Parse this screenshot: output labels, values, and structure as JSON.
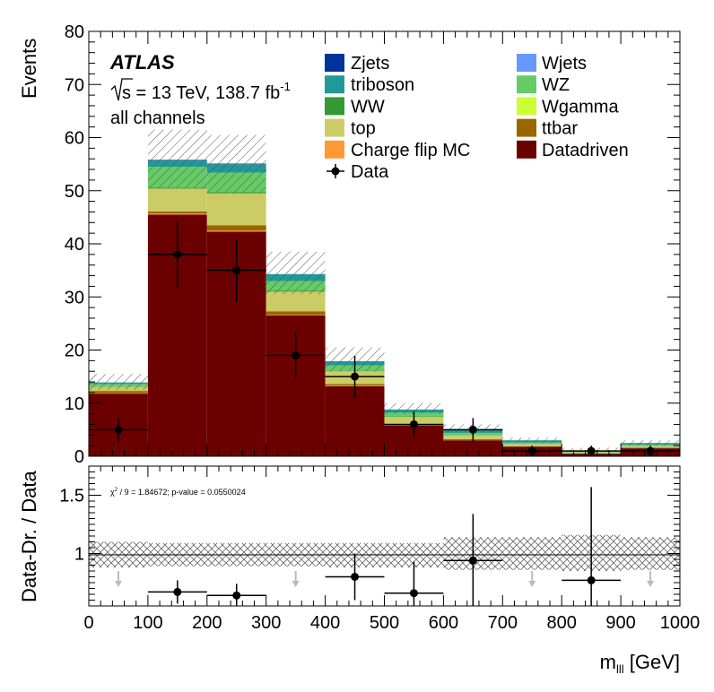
{
  "header": {
    "atlas": "ATLAS",
    "sqrt_s": "s",
    "energy_text": " = 13 TeV, 138.7 fb",
    "lumi_exp": "-1",
    "channels": "all channels"
  },
  "chart_data": [
    {
      "type": "stacked-histogram",
      "ylabel": "Events",
      "xlim": [
        0,
        1000
      ],
      "ylim": [
        0,
        80
      ],
      "yticks": [
        0,
        10,
        20,
        30,
        40,
        50,
        60,
        70,
        80
      ],
      "bin_edges": [
        0,
        100,
        200,
        300,
        400,
        500,
        600,
        700,
        800,
        900,
        1000
      ],
      "series": [
        {
          "name": "Datadriven",
          "color": "#6b0000",
          "values": [
            11.8,
            45.5,
            42.3,
            26.5,
            13.2,
            5.8,
            3.0,
            1.8,
            0.5,
            1.5
          ]
        },
        {
          "name": "Charge flip MC",
          "color": "#ff9933",
          "values": [
            0.1,
            0.2,
            0.2,
            0.1,
            0.1,
            0.1,
            0.0,
            0.0,
            0.0,
            0.0
          ]
        },
        {
          "name": "ttbar",
          "color": "#996600",
          "values": [
            0.4,
            0.4,
            1.0,
            0.7,
            0.3,
            0.2,
            0.2,
            0.1,
            0.0,
            0.1
          ]
        },
        {
          "name": "top",
          "color": "#cccc66",
          "values": [
            0.8,
            4.3,
            6.0,
            3.7,
            2.4,
            1.3,
            0.7,
            0.4,
            0.2,
            0.3
          ]
        },
        {
          "name": "Wgamma",
          "color": "#ccff33",
          "values": [
            0.0,
            0.0,
            0.0,
            0.0,
            0.0,
            0.0,
            0.0,
            0.0,
            0.0,
            0.0
          ]
        },
        {
          "name": "WW",
          "color": "#339933",
          "values": [
            0.1,
            0.2,
            0.2,
            0.2,
            0.1,
            0.1,
            0.0,
            0.0,
            0.0,
            0.0
          ]
        },
        {
          "name": "WZ",
          "color": "#66cc66",
          "values": [
            0.4,
            3.9,
            3.7,
            1.8,
            1.0,
            0.7,
            0.5,
            0.3,
            0.2,
            0.3
          ]
        },
        {
          "name": "triboson",
          "color": "#229999",
          "values": [
            0.3,
            1.2,
            1.6,
            1.3,
            0.8,
            0.6,
            0.5,
            0.4,
            0.2,
            0.3
          ]
        },
        {
          "name": "Wjets",
          "color": "#6699ff",
          "values": [
            0.0,
            0.0,
            0.0,
            0.0,
            0.0,
            0.0,
            0.0,
            0.0,
            0.0,
            0.0
          ]
        },
        {
          "name": "Zjets",
          "color": "#003399",
          "values": [
            0.0,
            0.1,
            0.1,
            0.0,
            0.0,
            0.0,
            0.0,
            0.0,
            0.0,
            0.0
          ]
        }
      ],
      "uncertainty_band": {
        "lower": [
          12.5,
          50.5,
          49.5,
          30.5,
          16.0,
          8.0,
          4.5,
          2.5,
          1.0,
          2.0
        ],
        "upper": [
          15.5,
          61.5,
          60.5,
          38.5,
          20.5,
          10.0,
          6.0,
          3.5,
          1.6,
          3.0
        ]
      },
      "data": {
        "name": "Data",
        "x": [
          50,
          150,
          250,
          350,
          450,
          550,
          650,
          750,
          850,
          950
        ],
        "y": [
          5,
          38,
          35,
          19,
          15,
          6,
          5,
          1,
          1,
          1
        ],
        "err_low": [
          2.2,
          6.2,
          5.9,
          4.4,
          3.9,
          2.4,
          2.2,
          1.0,
          1.0,
          1.0
        ],
        "err_high": [
          2.2,
          6.2,
          5.9,
          4.4,
          3.9,
          2.4,
          2.2,
          1.0,
          1.0,
          1.0
        ]
      },
      "legend": {
        "left": [
          "Zjets",
          "triboson",
          "WW",
          "top",
          "Charge flip MC",
          "Data"
        ],
        "right": [
          "Wjets",
          "WZ",
          "Wgamma",
          "ttbar",
          "Datadriven"
        ]
      }
    },
    {
      "type": "ratio",
      "ylabel": "Data-Dr. / Data",
      "xlabel": "m",
      "xlabel_sub": "lll",
      "xlabel_unit": " [GeV]",
      "xlim": [
        0,
        1000
      ],
      "ylim": [
        0.55,
        1.75
      ],
      "yticks": [
        1,
        1.5
      ],
      "xticks": [
        0,
        100,
        200,
        300,
        400,
        500,
        600,
        700,
        800,
        900,
        1000
      ],
      "stats_prefix": "χ",
      "stats_sup": "2",
      "stats_suffix": " / 9 = 1.84672; p-value = 0.0550024",
      "band_lower": [
        0.88,
        0.89,
        0.89,
        0.89,
        0.88,
        0.88,
        0.86,
        0.86,
        0.85,
        0.86
      ],
      "band_upper": [
        1.1,
        1.09,
        1.09,
        1.09,
        1.09,
        1.09,
        1.14,
        1.14,
        1.16,
        1.14
      ],
      "points": [
        {
          "x": 150,
          "y": 0.67,
          "err_low": 0.1,
          "err_high": 0.1,
          "xerr": 50
        },
        {
          "x": 250,
          "y": 0.64,
          "err_low": 0.1,
          "err_high": 0.1,
          "xerr": 50
        },
        {
          "x": 450,
          "y": 0.8,
          "err_low": 0.2,
          "err_high": 0.2,
          "xerr": 50
        },
        {
          "x": 550,
          "y": 0.66,
          "err_low": 0.27,
          "err_high": 0.27,
          "xerr": 50
        },
        {
          "x": 650,
          "y": 0.94,
          "err_low": 0.4,
          "err_high": 0.4,
          "xerr": 50
        },
        {
          "x": 850,
          "y": 0.77,
          "err_low": 0.8,
          "err_high": 0.8,
          "xerr": 50
        }
      ],
      "arrows_x": [
        50,
        350,
        750,
        950
      ]
    }
  ]
}
